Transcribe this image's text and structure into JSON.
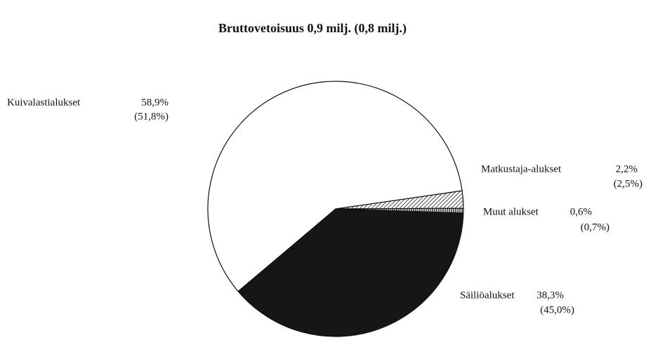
{
  "chart_data": {
    "type": "pie",
    "title": "Bruttovetoisuus 0,9 milj. (0,8 milj.)",
    "categories": [
      "Matkustaja-alukset",
      "Muut alukset",
      "Säiliöalukset",
      "Kuivalastialukset"
    ],
    "values": [
      2.2,
      0.6,
      38.3,
      58.9
    ],
    "value_labels": [
      "2,2%",
      "0,6%",
      "38,3%",
      "58,9%"
    ],
    "previous_value_labels": [
      "(2,5%)",
      "(0,7%)",
      "(45,0%)",
      "(51,8%)"
    ],
    "colors": [
      "hatch",
      "stripes",
      "#161616",
      "#ffffff"
    ]
  }
}
